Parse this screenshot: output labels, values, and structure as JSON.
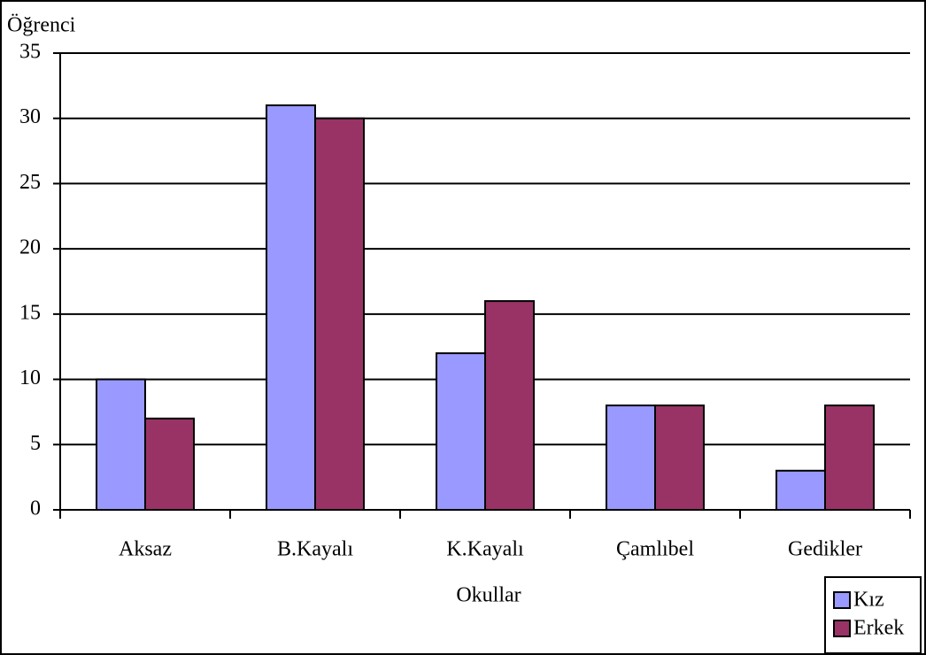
{
  "chart_data": {
    "type": "bar",
    "y_label": "Öğrenci",
    "x_label": "Okullar",
    "categories": [
      "Aksaz",
      "B.Kayalı",
      "K.Kayalı",
      "Çamlıbel",
      "Gedikler"
    ],
    "series": [
      {
        "name": "Kız",
        "color": "#9999ff",
        "values": [
          10,
          31,
          12,
          8,
          3
        ]
      },
      {
        "name": "Erkek",
        "color": "#993366",
        "values": [
          7,
          30,
          16,
          8,
          8
        ]
      }
    ],
    "ylim": [
      0,
      35
    ],
    "yticks": [
      0,
      5,
      10,
      15,
      20,
      25,
      30,
      35
    ],
    "grid": true,
    "legend": "bottom-right"
  }
}
